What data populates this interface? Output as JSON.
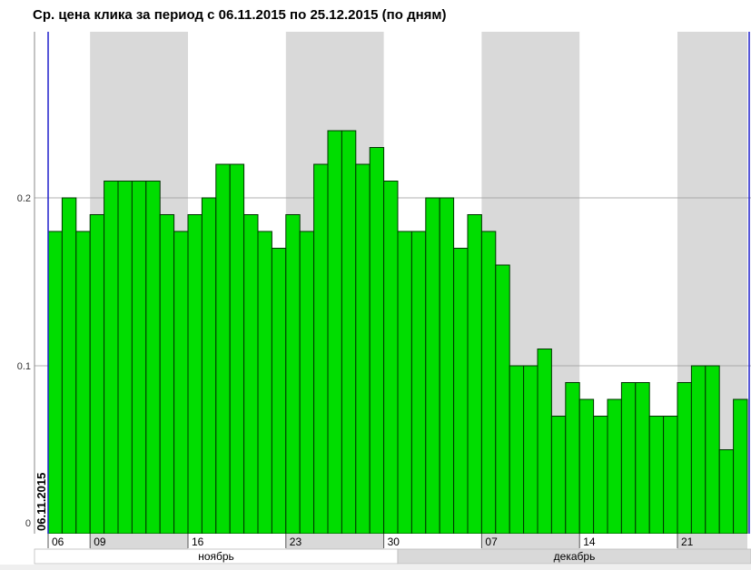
{
  "title": "Ср. цена клика за период с 06.11.2015 по 25.12.2015 (по дням)",
  "colors": {
    "bar_fill": "#00dd00",
    "bar_stroke": "#003300",
    "band_gray": "#d9d9d9",
    "bound_line": "#2020cc",
    "grid": "#999999"
  },
  "chart_data": {
    "type": "bar",
    "title": "Ср. цена клика за период с 06.11.2015 по 25.12.2015 (по дням)",
    "xlabel": "",
    "ylabel": "",
    "ylim": [
      0,
      0.25
    ],
    "yticks": [
      {
        "value": 0,
        "label": "0"
      },
      {
        "value": 0.1,
        "label": "0.1"
      },
      {
        "value": 0.2,
        "label": "0.2"
      }
    ],
    "grid": true,
    "start_label": "06.11.2015",
    "categories": [
      "06.11",
      "07.11",
      "08.11",
      "09.11",
      "10.11",
      "11.11",
      "12.11",
      "13.11",
      "14.11",
      "15.11",
      "16.11",
      "17.11",
      "18.11",
      "19.11",
      "20.11",
      "21.11",
      "22.11",
      "23.11",
      "24.11",
      "25.11",
      "26.11",
      "27.11",
      "28.11",
      "29.11",
      "30.11",
      "01.12",
      "02.12",
      "03.12",
      "04.12",
      "05.12",
      "06.12",
      "07.12",
      "08.12",
      "09.12",
      "10.12",
      "11.12",
      "12.12",
      "13.12",
      "14.12",
      "15.12",
      "16.12",
      "17.12",
      "18.12",
      "19.12",
      "20.12",
      "21.12",
      "22.12",
      "23.12",
      "24.12",
      "25.12"
    ],
    "values": [
      0.18,
      0.2,
      0.18,
      0.19,
      0.21,
      0.21,
      0.21,
      0.21,
      0.19,
      0.18,
      0.19,
      0.2,
      0.22,
      0.22,
      0.19,
      0.18,
      0.17,
      0.19,
      0.18,
      0.22,
      0.24,
      0.24,
      0.22,
      0.23,
      0.21,
      0.18,
      0.18,
      0.2,
      0.2,
      0.17,
      0.19,
      0.18,
      0.16,
      0.1,
      0.1,
      0.11,
      0.07,
      0.09,
      0.08,
      0.07,
      0.08,
      0.09,
      0.09,
      0.07,
      0.07,
      0.09,
      0.1,
      0.1,
      0.05,
      0.08
    ],
    "x_tick_labels": [
      {
        "index": 0,
        "label": "06"
      },
      {
        "index": 3,
        "label": "09"
      },
      {
        "index": 10,
        "label": "16"
      },
      {
        "index": 17,
        "label": "23"
      },
      {
        "index": 24,
        "label": "30"
      },
      {
        "index": 31,
        "label": "07"
      },
      {
        "index": 38,
        "label": "14"
      },
      {
        "index": 45,
        "label": "21"
      }
    ],
    "months": [
      {
        "label": "ноябрь",
        "start": 0,
        "end": 24
      },
      {
        "label": "декабрь",
        "start": 25,
        "end": 49
      }
    ],
    "shaded_weeks": [
      {
        "start": 3,
        "end": 9
      },
      {
        "start": 17,
        "end": 23
      },
      {
        "start": 31,
        "end": 37
      },
      {
        "start": 45,
        "end": 49
      }
    ]
  }
}
